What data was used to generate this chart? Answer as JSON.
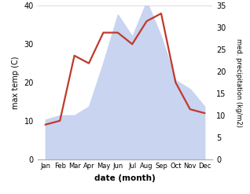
{
  "months": [
    "Jan",
    "Feb",
    "Mar",
    "Apr",
    "May",
    "Jun",
    "Jul",
    "Aug",
    "Sep",
    "Oct",
    "Nov",
    "Dec"
  ],
  "temperature": [
    9,
    10,
    27,
    25,
    33,
    33,
    30,
    36,
    38,
    20,
    13,
    12
  ],
  "precipitation": [
    9,
    10,
    10,
    12,
    22,
    33,
    28,
    36,
    28,
    18,
    16,
    12
  ],
  "temp_color": "#c0392b",
  "precip_color_fill": "#c8d4f0",
  "left_ylabel": "max temp (C)",
  "right_ylabel": "med. precipitation (kg/m2)",
  "xlabel": "date (month)",
  "left_ylim": [
    0,
    40
  ],
  "right_ylim": [
    0,
    35
  ],
  "left_yticks": [
    0,
    10,
    20,
    30,
    40
  ],
  "right_yticks": [
    0,
    5,
    10,
    15,
    20,
    25,
    30,
    35
  ],
  "bg_color": "#ffffff",
  "line_width": 1.6
}
